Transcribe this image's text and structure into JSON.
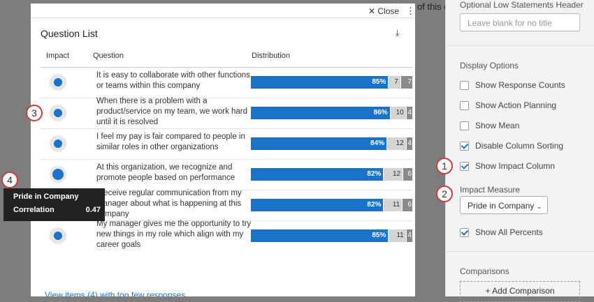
{
  "background": {
    "partial_text": "of this da"
  },
  "modal": {
    "close": "Close",
    "title": "Question List",
    "headers": [
      "Impact",
      "Question",
      "Distribution"
    ],
    "rows": [
      {
        "question": [
          "It is easy to collaborate with other functions",
          "or teams within this company"
        ],
        "percent": 85,
        "percent_label": "85%",
        "neutral": 7,
        "negative": 7
      },
      {
        "question": [
          "When there is a problem with a",
          "product/service on my team, we work hard",
          "until it is resolved"
        ],
        "percent": 86,
        "percent_label": "86%",
        "neutral": 10,
        "negative": 4
      },
      {
        "question": [
          "I feel my pay is fair compared to people in",
          "similar roles in other organizations"
        ],
        "percent": 84,
        "percent_label": "84%",
        "neutral": 12,
        "negative": 4
      },
      {
        "question": [
          "At this organization, we recognize and",
          "promote people based on performance"
        ],
        "percent": 82,
        "percent_label": "82%",
        "neutral": 12,
        "negative": 6
      },
      {
        "question": [
          "I receive regular communication from my",
          "manager about what is happening at this",
          "company"
        ],
        "percent": 82,
        "percent_label": "82%",
        "neutral": 11,
        "negative": 6
      },
      {
        "question": [
          "My manager gives me the opportunity to try",
          "new things in my role which align with my",
          "career goals"
        ],
        "percent": 85,
        "percent_label": "85%",
        "neutral": 11,
        "negative": 4
      }
    ],
    "footer_link": "View items (4) with too few responses"
  },
  "tooltip": {
    "title": "Pride in Company",
    "label": "Correlation",
    "value": "0.47"
  },
  "callouts": [
    "1",
    "2",
    "3",
    "4"
  ],
  "panel": {
    "header_label": "Optional Low Statements Header",
    "header_placeholder": "Leave blank for no title",
    "display_title": "Display Options",
    "options": [
      {
        "label": "Show Response Counts",
        "checked": false
      },
      {
        "label": "Show Action Planning",
        "checked": false
      },
      {
        "label": "Show Mean",
        "checked": false
      },
      {
        "label": "Disable Column Sorting",
        "checked": true
      },
      {
        "label": "Show Impact Column",
        "checked": true
      }
    ],
    "impact_label": "Impact Measure",
    "impact_value": "Pride in Company",
    "all_percents": {
      "label": "Show All Percents",
      "checked": true
    },
    "comparisons_title": "Comparisons",
    "add_comparison": "+ Add Comparison"
  }
}
